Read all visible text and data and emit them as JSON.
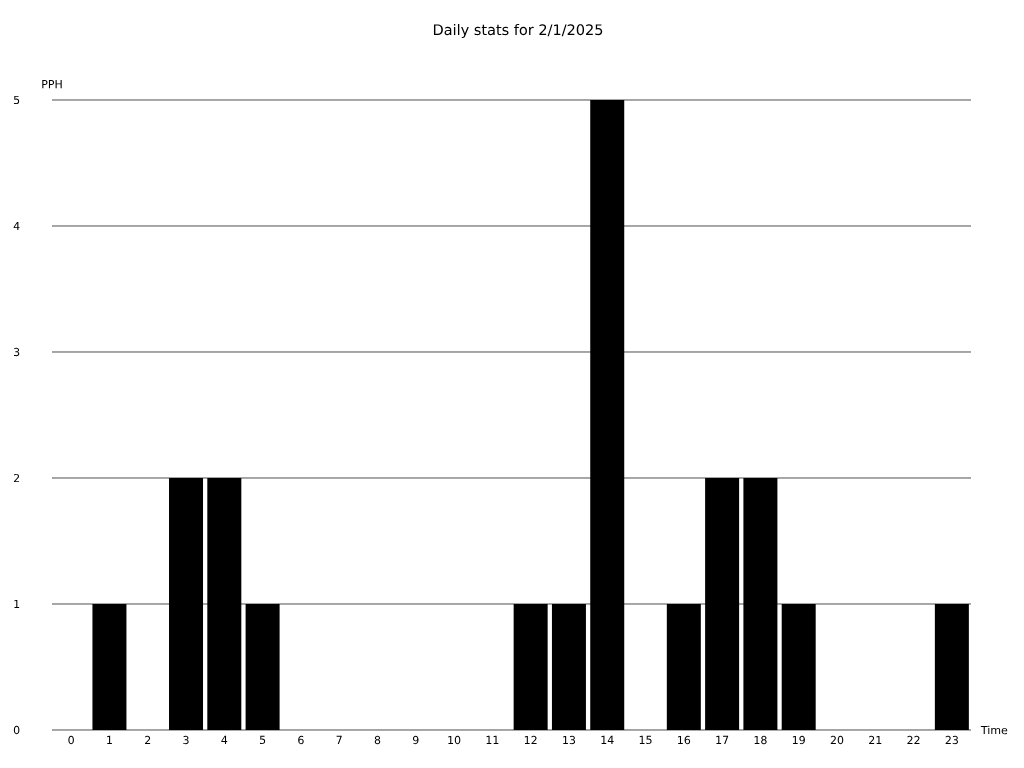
{
  "chart_data": {
    "type": "bar",
    "title": "Daily stats for 2/1/2025",
    "xlabel": "Time",
    "ylabel": "PPH",
    "categories": [
      "0",
      "1",
      "2",
      "3",
      "4",
      "5",
      "6",
      "7",
      "8",
      "9",
      "10",
      "11",
      "12",
      "13",
      "14",
      "15",
      "16",
      "17",
      "18",
      "19",
      "20",
      "21",
      "22",
      "23"
    ],
    "values": [
      0,
      1,
      0,
      2,
      2,
      1,
      0,
      0,
      0,
      0,
      0,
      0,
      1,
      1,
      5,
      0,
      1,
      2,
      2,
      1,
      0,
      0,
      0,
      1
    ],
    "color": "#000000",
    "ylim": [
      0,
      5
    ],
    "yticks": [
      0,
      1,
      2,
      3,
      4,
      5
    ],
    "grid": "y"
  }
}
